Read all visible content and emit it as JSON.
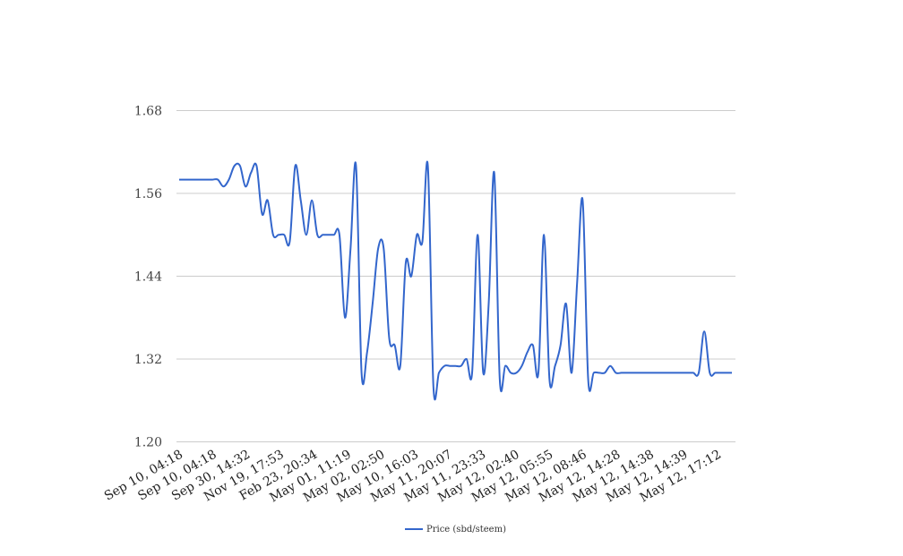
{
  "chart_data": {
    "type": "line",
    "title": "",
    "xlabel": "",
    "ylabel": "",
    "ylim": [
      1.2,
      1.68
    ],
    "yticks": [
      "1.20",
      "1.32",
      "1.44",
      "1.56",
      "1.68"
    ],
    "yticks_values": [
      1.2,
      1.32,
      1.44,
      1.56,
      1.68
    ],
    "xtick_labels": [
      "Sep 10, 04:18",
      "Sep 10, 04:18",
      "Sep 30, 14:32",
      "Nov 19, 17:53",
      "Feb 23, 20:34",
      "May 01, 11:19",
      "May 02, 02:50",
      "May 10, 16:03",
      "May 11, 20:07",
      "May 11, 23:33",
      "May 12, 02:40",
      "May 12, 05:55",
      "May 12, 08:46",
      "May 12, 14:28",
      "May 12, 14:38",
      "May 12, 14:39",
      "May 12, 17:12"
    ],
    "grid": true,
    "legend_position": "bottom",
    "series": [
      {
        "name": "Price (sbd/steem)",
        "color": "#3366cc",
        "values": [
          1.58,
          1.58,
          1.58,
          1.58,
          1.58,
          1.58,
          1.58,
          1.58,
          1.57,
          1.58,
          1.6,
          1.6,
          1.57,
          1.59,
          1.6,
          1.53,
          1.55,
          1.5,
          1.5,
          1.5,
          1.49,
          1.6,
          1.55,
          1.5,
          1.55,
          1.5,
          1.5,
          1.5,
          1.5,
          1.5,
          1.38,
          1.48,
          1.6,
          1.3,
          1.33,
          1.4,
          1.48,
          1.48,
          1.35,
          1.34,
          1.31,
          1.46,
          1.44,
          1.5,
          1.49,
          1.6,
          1.28,
          1.3,
          1.31,
          1.31,
          1.31,
          1.31,
          1.32,
          1.3,
          1.5,
          1.3,
          1.4,
          1.59,
          1.29,
          1.31,
          1.3,
          1.3,
          1.31,
          1.33,
          1.34,
          1.3,
          1.5,
          1.29,
          1.31,
          1.34,
          1.4,
          1.3,
          1.43,
          1.55,
          1.29,
          1.3,
          1.3,
          1.3,
          1.31,
          1.3,
          1.3,
          1.3,
          1.3,
          1.3,
          1.3,
          1.3,
          1.3,
          1.3,
          1.3,
          1.3,
          1.3,
          1.3,
          1.3,
          1.3,
          1.3,
          1.36,
          1.3,
          1.3,
          1.3,
          1.3,
          1.3
        ]
      }
    ]
  }
}
